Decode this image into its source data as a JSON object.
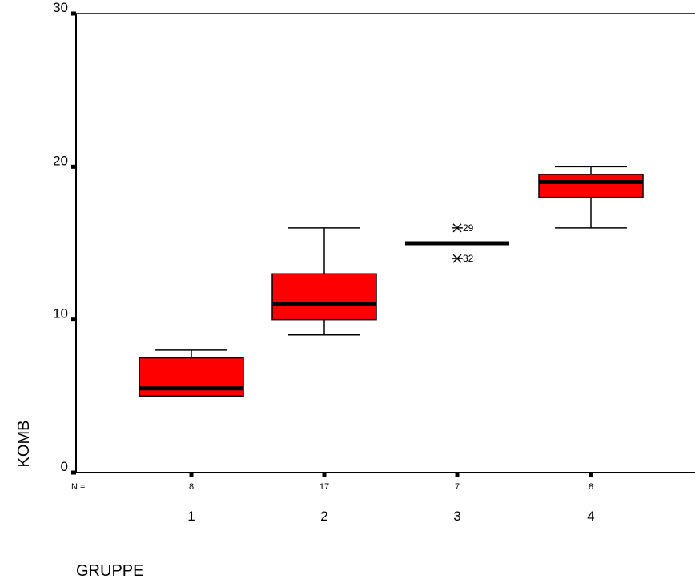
{
  "chart_data": {
    "type": "boxplot",
    "ylabel": "KOMB",
    "xlabel": "GRUPPE",
    "ylim": [
      0,
      30
    ],
    "yticks": [
      "0",
      "10",
      "20",
      "30"
    ],
    "n_prefix": "N =",
    "categories": [
      "1",
      "2",
      "3",
      "4"
    ],
    "n_values": [
      "8",
      "17",
      "7",
      "8"
    ],
    "boxes": [
      {
        "category": "1",
        "n": 8,
        "whisker_low": 5,
        "q1": 5,
        "median": 5.5,
        "q3": 7.5,
        "whisker_high": 8,
        "outliers": []
      },
      {
        "category": "2",
        "n": 17,
        "whisker_low": 9,
        "q1": 10,
        "median": 11,
        "q3": 13,
        "whisker_high": 16,
        "outliers": []
      },
      {
        "category": "3",
        "n": 7,
        "whisker_low": 15,
        "q1": 15,
        "median": 15,
        "q3": 15,
        "whisker_high": 15,
        "outliers": [
          {
            "value": 16,
            "label": "29"
          },
          {
            "value": 14,
            "label": "32"
          }
        ]
      },
      {
        "category": "4",
        "n": 8,
        "whisker_low": 16,
        "q1": 18,
        "median": 19,
        "q3": 19.5,
        "whisker_high": 20,
        "outliers": []
      }
    ],
    "colors": {
      "box_fill": "#ff0000",
      "line": "#000000",
      "background": "#ffffff"
    }
  }
}
